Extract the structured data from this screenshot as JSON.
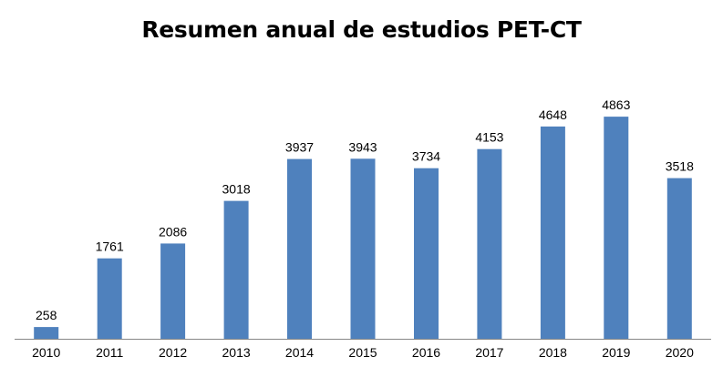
{
  "chart_data": {
    "type": "bar",
    "title": "Resumen anual de estudios PET-CT",
    "xlabel": "",
    "ylabel": "",
    "categories": [
      "2010",
      "2011",
      "2012",
      "2013",
      "2014",
      "2015",
      "2016",
      "2017",
      "2018",
      "2019",
      "2020"
    ],
    "values": [
      258,
      1761,
      2086,
      3018,
      3937,
      3943,
      3734,
      4153,
      4648,
      4863,
      3518
    ],
    "ylim": [
      0,
      5000
    ],
    "grid": false,
    "legend": "none",
    "bar_color": "#4f81bd",
    "axis_color": "#868686",
    "data_labels": true
  }
}
